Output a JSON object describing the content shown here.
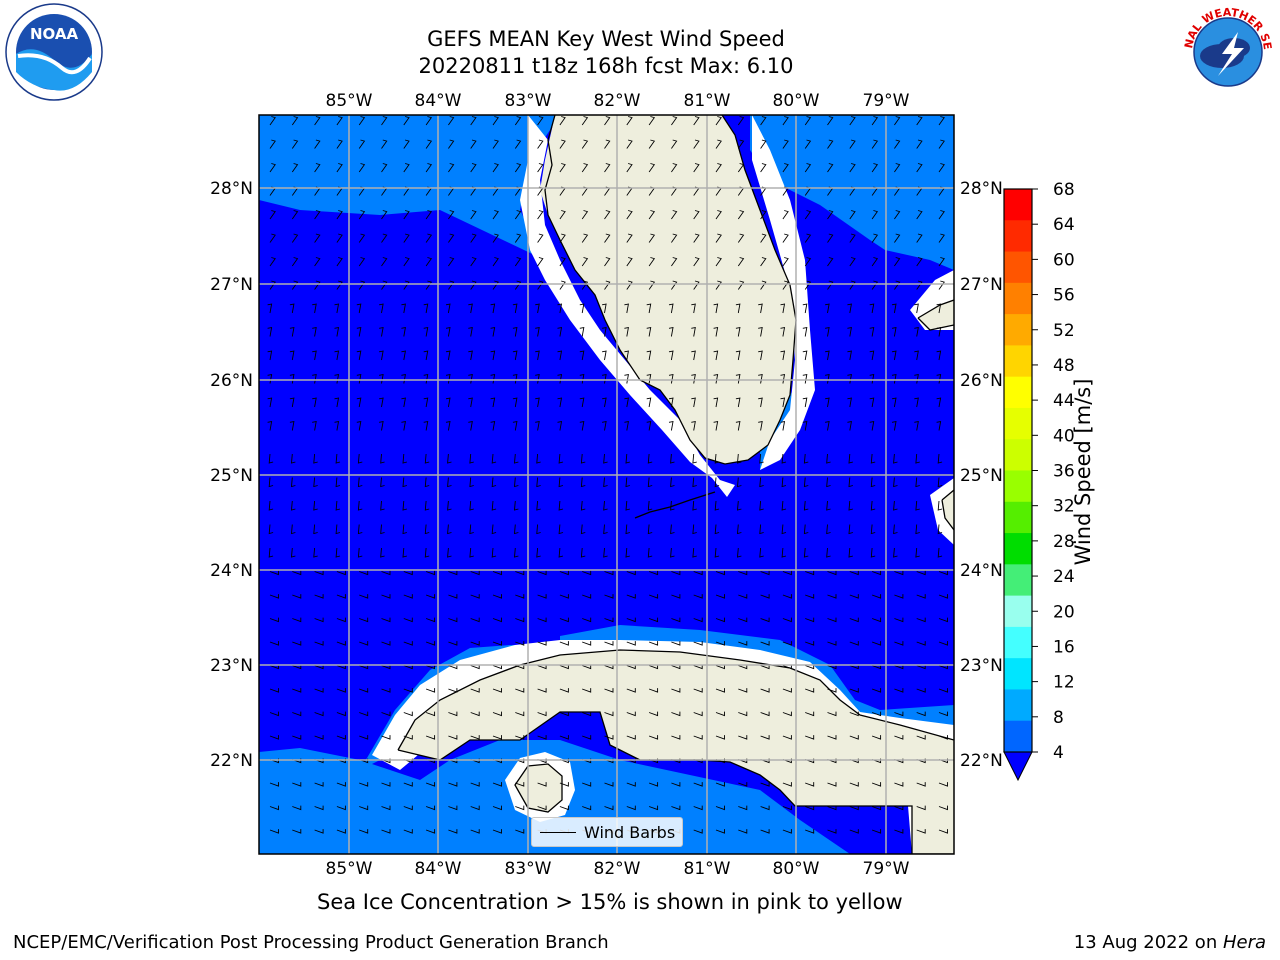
{
  "title_line1": "GEFS MEAN Key West Wind Speed",
  "title_line2": "20220811 t18z 168h fcst   Max: 6.10",
  "caption": "Sea Ice Concentration > 15% is shown in pink to yellow",
  "footer_left": "NCEP/EMC/Verification Post Processing Product Generation Branch",
  "footer_right_date": "13 Aug 2022 on ",
  "footer_right_machine": "Hera",
  "legend_label": "Wind Barbs",
  "colorbar": {
    "label": "Wind Speed [m/s]",
    "ticks": [
      "68",
      "64",
      "60",
      "56",
      "52",
      "48",
      "44",
      "40",
      "36",
      "32",
      "28",
      "24",
      "20",
      "16",
      "12",
      "8",
      "4"
    ],
    "colors": [
      "#ff0000",
      "#ff2a00",
      "#ff5500",
      "#ff8000",
      "#ffaa00",
      "#ffd500",
      "#ffff00",
      "#e6ff00",
      "#ccff00",
      "#99ff00",
      "#55ee00",
      "#00dd00",
      "#44ee77",
      "#99ffee",
      "#44ffff",
      "#00e5ff",
      "#00aaff",
      "#0066ff"
    ],
    "extend_color": "#0000ff"
  },
  "axes": {
    "lon_labels": [
      "85°W",
      "84°W",
      "83°W",
      "82°W",
      "81°W",
      "80°W",
      "79°W"
    ],
    "lat_labels": [
      "28°N",
      "27°N",
      "26°N",
      "25°N",
      "24°N",
      "23°N",
      "22°N"
    ]
  },
  "map_colors": {
    "ocean_low": "#0000ff",
    "ocean_mid": "#0080ff",
    "land": "#eeeedd",
    "grid": "#b0b0b0"
  },
  "logos": {
    "noaa_text": "NOAA",
    "nws_text": "NATIONAL WEATHER SERVICE"
  }
}
